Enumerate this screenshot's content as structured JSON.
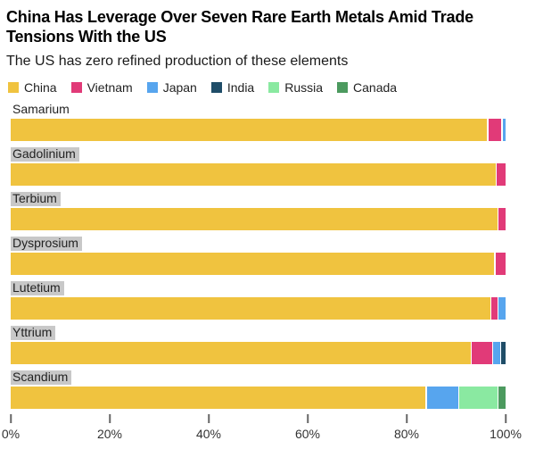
{
  "header": {
    "title": "China Has Leverage Over Seven Rare Earth Metals Amid Trade Tensions With the US",
    "subtitle": "The US has zero refined production of these elements"
  },
  "colors": {
    "China": "#F0C33F",
    "Vietnam": "#E13A78",
    "Japan": "#57A5EE",
    "India": "#1F4D68",
    "Russia": "#8AE9A1",
    "Canada": "#4C9A5F",
    "label_highlight_bg": "#C8C8C8"
  },
  "chart_data": {
    "type": "bar",
    "orientation": "horizontal",
    "stacked": true,
    "unit": "%",
    "title": "China Has Leverage Over Seven Rare Earth Metals Amid Trade Tensions With the US",
    "subtitle": "The US has zero refined production of these elements",
    "categories": [
      "Samarium",
      "Gadolinium",
      "Terbium",
      "Dysprosium",
      "Lutetium",
      "Yttrium",
      "Scandium"
    ],
    "label_highlight": [
      false,
      true,
      true,
      true,
      true,
      true,
      true
    ],
    "series": [
      {
        "name": "China",
        "values": [
          96.8,
          98.2,
          98.6,
          98.0,
          97.4,
          93.7,
          84.5
        ]
      },
      {
        "name": "Vietnam",
        "values": [
          2.6,
          1.8,
          1.4,
          2.0,
          1.2,
          4.1,
          0
        ]
      },
      {
        "name": "Japan",
        "values": [
          0.6,
          0,
          0,
          0,
          1.4,
          1.3,
          6.4
        ]
      },
      {
        "name": "India",
        "values": [
          0,
          0,
          0,
          0,
          0,
          0.9,
          0
        ]
      },
      {
        "name": "Russia",
        "values": [
          0,
          0,
          0,
          0,
          0,
          0,
          7.7
        ]
      },
      {
        "name": "Canada",
        "values": [
          0,
          0,
          0,
          0,
          0,
          0,
          1.4
        ]
      }
    ],
    "legend": [
      "China",
      "Vietnam",
      "Japan",
      "India",
      "Russia",
      "Canada"
    ],
    "legend_position": "top",
    "grid": false,
    "xlabel": "",
    "ylabel": "",
    "x_axis": {
      "range": [
        0,
        100
      ],
      "values": [
        0,
        20,
        40,
        60,
        80,
        100
      ],
      "ticks": [
        "0%",
        "20%",
        "40%",
        "60%",
        "80%",
        "100%"
      ]
    }
  }
}
